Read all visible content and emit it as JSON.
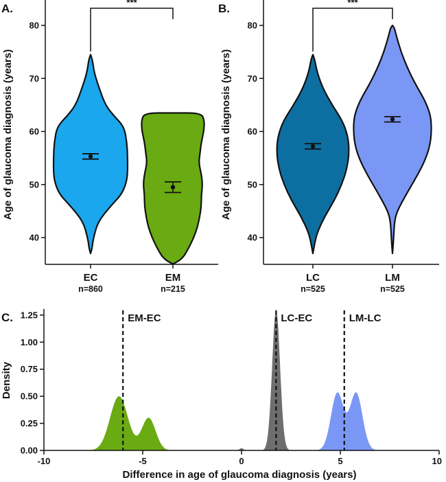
{
  "chart_data": [
    {
      "panel_label": "A.",
      "type": "violin",
      "ylabel": "Age of glaucoma diagnosis (years)",
      "ylim": [
        35,
        85
      ],
      "yticks": [
        40,
        50,
        60,
        70,
        80
      ],
      "groups": [
        {
          "name": "EC",
          "n_label": "n=860",
          "color": "#1aa7ee",
          "mean": 55.3,
          "ci": [
            54.8,
            55.8
          ],
          "min": 37,
          "max": 74.5
        },
        {
          "name": "EM",
          "n_label": "n=215",
          "color": "#6aaa12",
          "mean": 49.5,
          "ci": [
            48.5,
            50.5
          ],
          "min": 35,
          "max": 63.5
        }
      ],
      "significance": "***"
    },
    {
      "panel_label": "B.",
      "type": "violin",
      "ylabel": "Age of glaucoma diagnosis (years)",
      "ylim": [
        35,
        85
      ],
      "yticks": [
        40,
        50,
        60,
        70,
        80
      ],
      "groups": [
        {
          "name": "LC",
          "n_label": "n=525",
          "color": "#0d6fa1",
          "mean": 57.2,
          "ci": [
            56.7,
            57.7
          ],
          "min": 37,
          "max": 74.5
        },
        {
          "name": "LM",
          "n_label": "n=525",
          "color": "#7b97f5",
          "mean": 62.3,
          "ci": [
            61.8,
            62.8
          ],
          "min": 37,
          "max": 80
        }
      ],
      "significance": "***"
    },
    {
      "panel_label": "C.",
      "type": "area",
      "xlabel": "Difference in age of glaucoma diagnosis (years)",
      "ylabel": "Density",
      "xlim": [
        -10,
        10
      ],
      "ylim": [
        0,
        1.3
      ],
      "xticks": [
        -10,
        -5,
        0,
        5,
        10
      ],
      "yticks": [
        0.0,
        0.25,
        0.5,
        0.75,
        1.0,
        1.25
      ],
      "ytick_labels": [
        "0.00",
        "0.25",
        "0.50",
        "0.75",
        "1.00",
        "1.25"
      ],
      "series": [
        {
          "name": "EM-EC",
          "color": "#6aaa12",
          "ref_line": -6.0,
          "peaks": [
            {
              "center": -6.2,
              "height": 0.5,
              "sd": 0.45
            },
            {
              "center": -4.7,
              "height": 0.3,
              "sd": 0.35
            }
          ]
        },
        {
          "name": "LC-EC",
          "color": "#6e6e6e",
          "ref_line": 1.75,
          "peaks": [
            {
              "center": 1.75,
              "height": 1.3,
              "sd": 0.2
            },
            {
              "center": 0.0,
              "height": 0.02,
              "sd": 0.1
            }
          ]
        },
        {
          "name": "LM-LC",
          "color": "#7b97f5",
          "ref_line": 5.2,
          "peaks": [
            {
              "center": 4.85,
              "height": 0.53,
              "sd": 0.32
            },
            {
              "center": 5.8,
              "height": 0.53,
              "sd": 0.32
            }
          ]
        }
      ]
    }
  ]
}
